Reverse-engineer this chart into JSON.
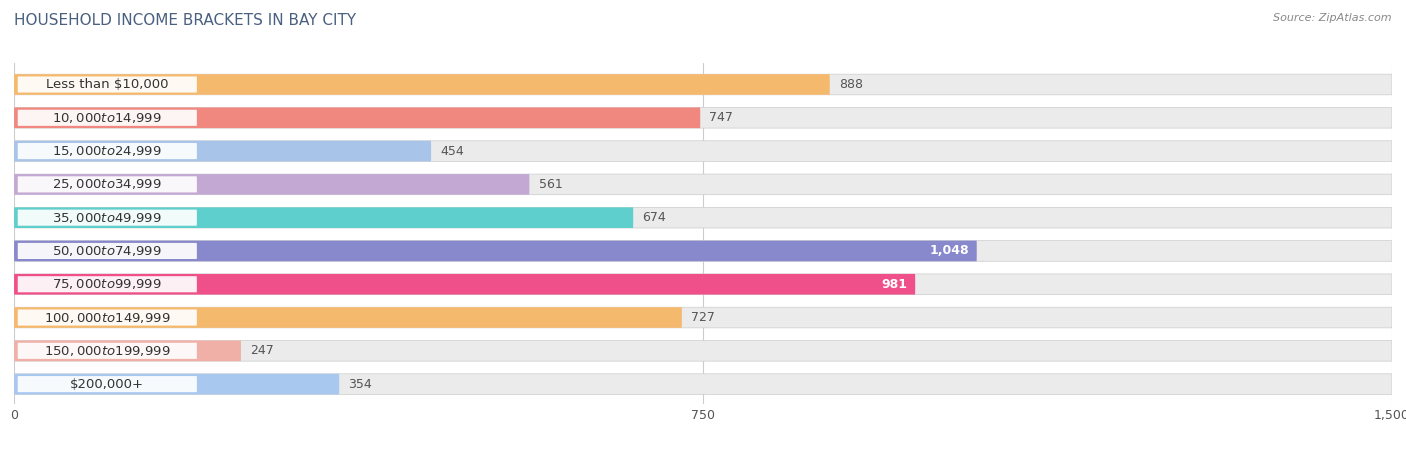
{
  "title": "HOUSEHOLD INCOME BRACKETS IN BAY CITY",
  "source": "Source: ZipAtlas.com",
  "categories": [
    "Less than $10,000",
    "$10,000 to $14,999",
    "$15,000 to $24,999",
    "$25,000 to $34,999",
    "$35,000 to $49,999",
    "$50,000 to $74,999",
    "$75,000 to $99,999",
    "$100,000 to $149,999",
    "$150,000 to $199,999",
    "$200,000+"
  ],
  "values": [
    888,
    747,
    454,
    561,
    674,
    1048,
    981,
    727,
    247,
    354
  ],
  "bar_colors": [
    "#F5B96E",
    "#F08880",
    "#A8C4E8",
    "#C4A8D4",
    "#5ECFCC",
    "#8888CC",
    "#F0508A",
    "#F5B96E",
    "#F0B0A8",
    "#A8C8F0"
  ],
  "label_colors": [
    "#333333",
    "#333333",
    "#333333",
    "#333333",
    "#333333",
    "#333333",
    "#333333",
    "#333333",
    "#333333",
    "#333333"
  ],
  "value_colors": [
    "#555555",
    "#555555",
    "#555555",
    "#555555",
    "#555555",
    "#ffffff",
    "#ffffff",
    "#555555",
    "#555555",
    "#555555"
  ],
  "xlim": [
    0,
    1500
  ],
  "xticks": [
    0,
    750,
    1500
  ],
  "background_color": "#ffffff",
  "bar_bg_color": "#ebebeb",
  "title_color": "#4a6080",
  "title_fontsize": 11,
  "label_fontsize": 9.5,
  "value_fontsize": 9,
  "bar_height": 0.62
}
